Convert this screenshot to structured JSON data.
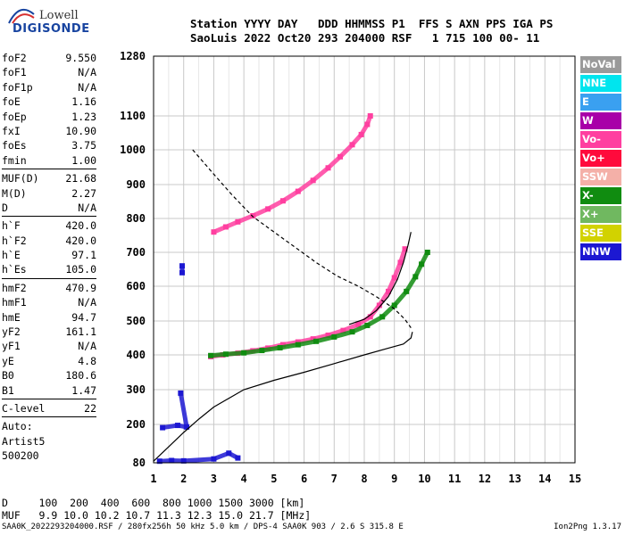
{
  "logo": {
    "line1": "Lowell",
    "line2": "DIGISONDE"
  },
  "header": {
    "line1": "Station YYYY DAY   DDD HHMMSS P1  FFS S AXN PPS IGA PS",
    "line2": "SaoLuis 2022 Oct20 293 204000 RSF   1 715 100 00- 11"
  },
  "params": [
    [
      {
        "label": "foF2",
        "value": "9.550"
      },
      {
        "label": "foF1",
        "value": "N/A"
      },
      {
        "label": "foF1p",
        "value": "N/A"
      },
      {
        "label": "foE",
        "value": "1.16"
      },
      {
        "label": "foEp",
        "value": "1.23"
      },
      {
        "label": "fxI",
        "value": "10.90"
      },
      {
        "label": "foEs",
        "value": "3.75"
      },
      {
        "label": "fmin",
        "value": "1.00"
      }
    ],
    [
      {
        "label": "MUF(D)",
        "value": "21.68"
      },
      {
        "label": "M(D)",
        "value": "2.27"
      },
      {
        "label": "D",
        "value": "N/A"
      }
    ],
    [
      {
        "label": "h`F",
        "value": "420.0"
      },
      {
        "label": "h`F2",
        "value": "420.0"
      },
      {
        "label": "h`E",
        "value": "97.1"
      },
      {
        "label": "h`Es",
        "value": "105.0"
      }
    ],
    [
      {
        "label": "hmF2",
        "value": "470.9"
      },
      {
        "label": "hmF1",
        "value": "N/A"
      },
      {
        "label": "hmE",
        "value": "94.7"
      },
      {
        "label": "yF2",
        "value": "161.1"
      },
      {
        "label": "yF1",
        "value": "N/A"
      },
      {
        "label": "yE",
        "value": "4.8"
      },
      {
        "label": "B0",
        "value": "180.6"
      },
      {
        "label": "B1",
        "value": "1.47"
      }
    ],
    [
      {
        "label": "C-level",
        "value": "22"
      }
    ]
  ],
  "autoscale": {
    "line1": "Auto:",
    "line2": "Artist5",
    "line3": "500200"
  },
  "legend": [
    {
      "label": "NoVal",
      "color": "#9a9a9a"
    },
    {
      "label": "NNE",
      "color": "#00e5ee"
    },
    {
      "label": "E",
      "color": "#3aa0f0"
    },
    {
      "label": "W",
      "color": "#a800a8"
    },
    {
      "label": "Vo-",
      "color": "#ff3fa0"
    },
    {
      "label": "Vo+",
      "color": "#ff0a3c"
    },
    {
      "label": "SSW",
      "color": "#f4b0a8"
    },
    {
      "label": "X-",
      "color": "#108c10"
    },
    {
      "label": "X+",
      "color": "#70b860"
    },
    {
      "label": "SSE",
      "color": "#d2d200"
    },
    {
      "label": "NNW",
      "color": "#1c18d2"
    }
  ],
  "muf_table": {
    "row1": "D     100  200  400  600  800 1000 1500 3000 [km]",
    "row2": "MUF   9.9 10.0 10.2 10.7 11.3 12.3 15.0 21.7 [MHz]"
  },
  "footer": {
    "text": "SAA0K_2022293204000.RSF / 280fx256h 50 kHz 5.0 km / DPS-4 SAA0K 903 / 2.6 S 315.8 E",
    "version": "Ion2Png 1.3.17"
  },
  "chart_data": {
    "type": "scatter",
    "x_ticks": [
      "1",
      "2",
      "3",
      "4",
      "5",
      "6",
      "7",
      "8",
      "9",
      "10",
      "11",
      "12",
      "13",
      "14",
      "15"
    ],
    "y_ticks": [
      "80",
      "200",
      "300",
      "400",
      "500",
      "600",
      "700",
      "800",
      "900",
      "1000",
      "1100",
      "1280"
    ],
    "xlim": [
      1,
      15
    ],
    "ylim": [
      80,
      1280
    ],
    "grid": true,
    "series": [
      {
        "name": "Vo-",
        "values": [
          [
            2.9,
            395
          ],
          [
            3.3,
            400
          ],
          [
            3.8,
            405
          ],
          [
            4.3,
            412
          ],
          [
            4.8,
            420
          ],
          [
            5.3,
            430
          ],
          [
            5.8,
            438
          ],
          [
            6.3,
            447
          ],
          [
            6.8,
            458
          ],
          [
            7.3,
            472
          ],
          [
            7.8,
            490
          ],
          [
            8.2,
            512
          ],
          [
            8.5,
            545
          ],
          [
            8.8,
            585
          ],
          [
            9.0,
            625
          ],
          [
            9.2,
            670
          ],
          [
            9.35,
            710
          ]
        ]
      },
      {
        "name": "X-",
        "values": [
          [
            2.9,
            398
          ],
          [
            3.4,
            402
          ],
          [
            4.0,
            406
          ],
          [
            4.6,
            413
          ],
          [
            5.2,
            421
          ],
          [
            5.8,
            430
          ],
          [
            6.4,
            440
          ],
          [
            7.0,
            453
          ],
          [
            7.6,
            468
          ],
          [
            8.1,
            487
          ],
          [
            8.6,
            512
          ],
          [
            9.0,
            545
          ],
          [
            9.4,
            585
          ],
          [
            9.7,
            628
          ],
          [
            9.9,
            665
          ],
          [
            10.1,
            700
          ]
        ]
      },
      {
        "name": "Vo-",
        "values": [
          [
            3.0,
            760
          ],
          [
            3.4,
            775
          ],
          [
            3.8,
            790
          ],
          [
            4.3,
            808
          ],
          [
            4.8,
            828
          ],
          [
            5.3,
            852
          ],
          [
            5.8,
            880
          ],
          [
            6.3,
            912
          ],
          [
            6.8,
            948
          ],
          [
            7.2,
            980
          ],
          [
            7.6,
            1015
          ],
          [
            7.9,
            1045
          ],
          [
            8.1,
            1075
          ],
          [
            8.2,
            1100
          ]
        ]
      },
      {
        "name": "NNW",
        "values": [
          [
            1.2,
            85
          ],
          [
            1.6,
            87
          ],
          [
            2.0,
            86
          ],
          [
            3.0,
            92
          ],
          [
            3.5,
            110
          ],
          [
            3.8,
            95
          ],
          [
            1.3,
            190
          ],
          [
            1.8,
            197
          ],
          [
            2.1,
            192
          ],
          [
            1.9,
            290
          ],
          [
            1.95,
            640
          ],
          [
            1.95,
            660
          ]
        ]
      }
    ],
    "curves": [
      {
        "name": "true-height profile",
        "style": "solid",
        "points": [
          [
            1.0,
            85
          ],
          [
            1.5,
            130
          ],
          [
            2.0,
            175
          ],
          [
            2.5,
            215
          ],
          [
            3.0,
            250
          ],
          [
            4.0,
            300
          ],
          [
            5.0,
            327
          ],
          [
            6.0,
            350
          ],
          [
            7.0,
            375
          ],
          [
            8.0,
            400
          ],
          [
            8.8,
            420
          ],
          [
            9.3,
            432
          ],
          [
            9.55,
            450
          ],
          [
            9.6,
            468
          ]
        ]
      },
      {
        "name": "MUF(D) curve",
        "style": "dashed",
        "points": [
          [
            2.3,
            1000
          ],
          [
            3.0,
            930
          ],
          [
            3.6,
            870
          ],
          [
            4.3,
            805
          ],
          [
            5.0,
            760
          ],
          [
            5.7,
            715
          ],
          [
            6.4,
            670
          ],
          [
            7.1,
            630
          ],
          [
            7.8,
            600
          ],
          [
            8.4,
            570
          ],
          [
            9.0,
            535
          ],
          [
            9.35,
            505
          ],
          [
            9.55,
            480
          ]
        ]
      },
      {
        "name": "model trace",
        "style": "solid",
        "points": [
          [
            7.5,
            490
          ],
          [
            8.0,
            505
          ],
          [
            8.4,
            530
          ],
          [
            8.8,
            570
          ],
          [
            9.1,
            620
          ],
          [
            9.3,
            670
          ],
          [
            9.45,
            720
          ],
          [
            9.55,
            760
          ]
        ]
      }
    ]
  }
}
